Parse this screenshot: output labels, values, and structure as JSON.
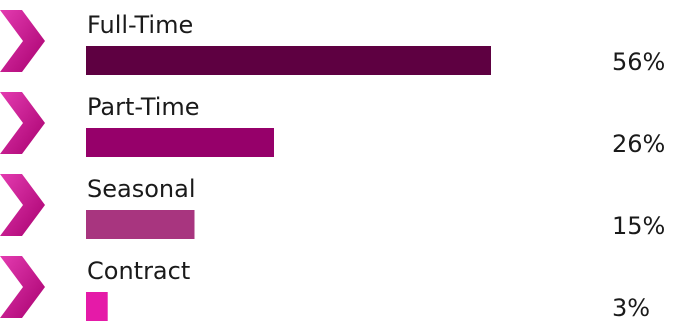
{
  "chart_data": {
    "type": "bar",
    "orientation": "horizontal",
    "categories": [
      "Full-Time",
      "Part-Time",
      "Seasonal",
      "Contract"
    ],
    "values": [
      56,
      26,
      15,
      3
    ],
    "value_labels": [
      "56%",
      "26%",
      "15%",
      "3%"
    ],
    "unit": "%",
    "colors": [
      "#5e0041",
      "#96006a",
      "#a8357f",
      "#e51aa8"
    ],
    "marker_icon": "chevron-right-icon",
    "marker_color": "#d4189a",
    "xlim": [
      0,
      56
    ],
    "grid": false,
    "legend": "none"
  }
}
